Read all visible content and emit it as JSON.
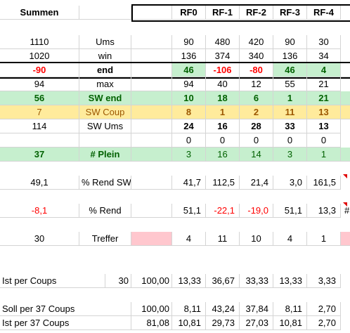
{
  "header": {
    "title": "Summen",
    "cols": [
      "RF0",
      "RF-1",
      "RF-2",
      "RF-3",
      "RF-4"
    ]
  },
  "rows": {
    "ums": {
      "total": "1110",
      "label": "Ums",
      "v": [
        "90",
        "480",
        "420",
        "90",
        "30"
      ]
    },
    "win": {
      "total": "1020",
      "label": "win",
      "v": [
        "136",
        "374",
        "340",
        "136",
        "34"
      ]
    },
    "end": {
      "total": "-90",
      "label": "end",
      "v": [
        "46",
        "-106",
        "-80",
        "46",
        "4"
      ]
    },
    "max": {
      "total": "94",
      "label": "max",
      "v": [
        "94",
        "40",
        "12",
        "55",
        "21"
      ]
    },
    "swend": {
      "total": "56",
      "label": "SW end",
      "v": [
        "10",
        "18",
        "6",
        "1",
        "21"
      ]
    },
    "swcoup": {
      "total": "7",
      "label": "SW Coup",
      "v": [
        "8",
        "1",
        "2",
        "11",
        "13"
      ]
    },
    "swums": {
      "total": "114",
      "label": "SW Ums",
      "v": [
        "24",
        "16",
        "28",
        "33",
        "13"
      ]
    },
    "zeros": {
      "v": [
        "0",
        "0",
        "0",
        "0",
        "0"
      ]
    },
    "plein": {
      "total": "37",
      "label": "# Plein",
      "v": [
        "3",
        "16",
        "14",
        "3",
        "1"
      ]
    },
    "rendsw": {
      "total": "49,1",
      "label": "% Rend SW",
      "v": [
        "41,7",
        "112,5",
        "21,4",
        "3,0",
        "161,5"
      ]
    },
    "rend": {
      "total": "-8,1",
      "label": "% Rend",
      "v": [
        "51,1",
        "-22,1",
        "-19,0",
        "51,1",
        "13,3"
      ],
      "overflow": "#"
    },
    "treffer": {
      "total": "30",
      "label": "Treffer",
      "v": [
        "4",
        "11",
        "10",
        "4",
        "1"
      ]
    },
    "istpc": {
      "label": "Ist per Coups",
      "count": "30",
      "sum": "100,00",
      "v": [
        "13,33",
        "36,67",
        "33,33",
        "13,33",
        "3,33"
      ]
    },
    "soll37": {
      "label": "Soll per 37 Coups",
      "sum": "100,00",
      "v": [
        "8,11",
        "43,24",
        "37,84",
        "8,11",
        "2,70"
      ]
    },
    "ist37": {
      "label": "Ist per 37 Coups",
      "sum": "81,08",
      "v": [
        "10,81",
        "29,73",
        "27,03",
        "10,81",
        "2,70"
      ]
    }
  },
  "colors": {
    "green": "#c6efce",
    "yellow": "#ffeb9c",
    "pink": "#ffc7ce",
    "red": "#ff0000"
  }
}
